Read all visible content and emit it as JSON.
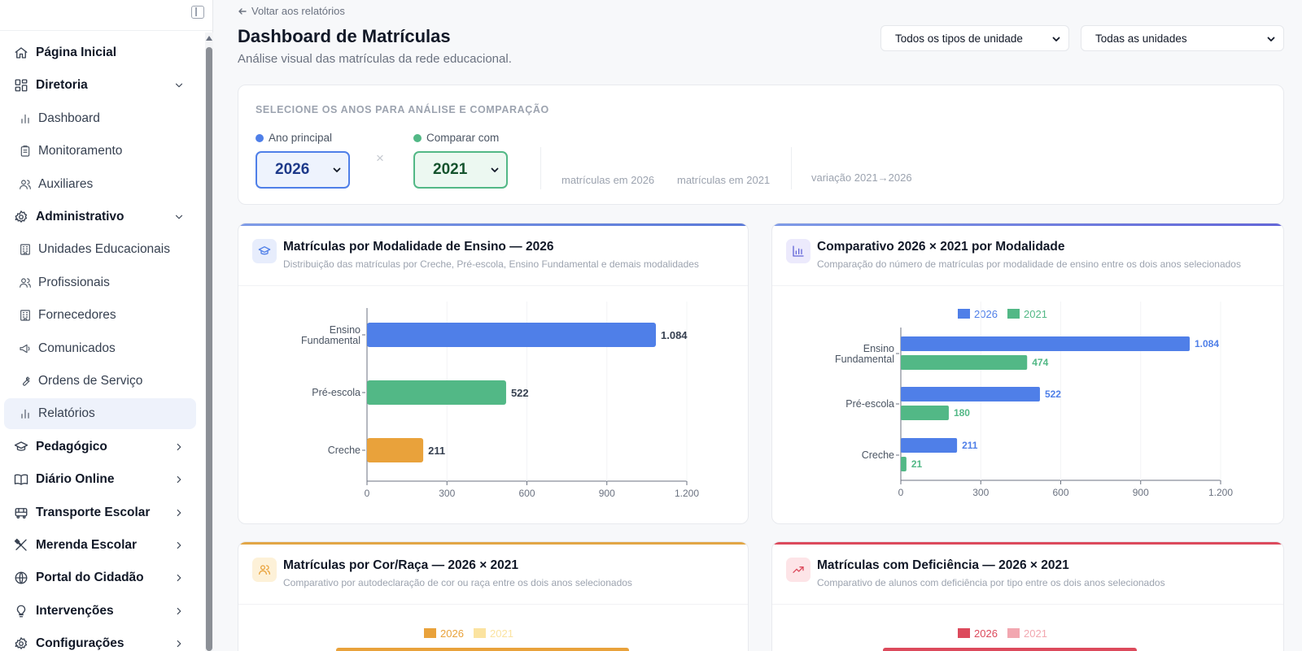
{
  "sidebar": {
    "items": [
      {
        "label": "Página Inicial",
        "icon": "home-icon",
        "level": "top"
      },
      {
        "label": "Diretoria",
        "icon": "grid-icon",
        "level": "top",
        "chevron": "down"
      },
      {
        "label": "Dashboard",
        "icon": "bar-chart-icon",
        "level": "sub"
      },
      {
        "label": "Monitoramento",
        "icon": "clipboard-icon",
        "level": "sub"
      },
      {
        "label": "Auxiliares",
        "icon": "users-icon",
        "level": "sub"
      },
      {
        "label": "Administrativo",
        "icon": "gear-icon",
        "level": "top",
        "chevron": "down"
      },
      {
        "label": "Unidades Educacionais",
        "icon": "building-icon",
        "level": "sub"
      },
      {
        "label": "Profissionais",
        "icon": "users-icon",
        "level": "sub"
      },
      {
        "label": "Fornecedores",
        "icon": "building-icon",
        "level": "sub"
      },
      {
        "label": "Comunicados",
        "icon": "megaphone-icon",
        "level": "sub"
      },
      {
        "label": "Ordens de Serviço",
        "icon": "wrench-icon",
        "level": "sub"
      },
      {
        "label": "Relatórios",
        "icon": "bar-chart-icon",
        "level": "sub",
        "active": true
      },
      {
        "label": "Pedagógico",
        "icon": "graduation-cap-icon",
        "level": "top",
        "chevron": "right"
      },
      {
        "label": "Diário Online",
        "icon": "book-icon",
        "level": "top",
        "chevron": "right"
      },
      {
        "label": "Transporte Escolar",
        "icon": "bus-icon",
        "level": "top",
        "chevron": "right"
      },
      {
        "label": "Merenda Escolar",
        "icon": "utensils-icon",
        "level": "top",
        "chevron": "right"
      },
      {
        "label": "Portal do Cidadão",
        "icon": "globe-icon",
        "level": "top",
        "chevron": "right"
      },
      {
        "label": "Intervenções",
        "icon": "lightbulb-icon",
        "level": "top",
        "chevron": "right"
      },
      {
        "label": "Configurações",
        "icon": "gear-icon",
        "level": "top",
        "chevron": "right"
      }
    ]
  },
  "header": {
    "back_label": "Voltar aos relatórios",
    "title": "Dashboard de Matrículas",
    "subtitle": "Análise visual das matrículas da rede educacional.",
    "filter_type": "Todos os tipos de unidade",
    "filter_unit": "Todas as unidades"
  },
  "year_selector": {
    "title": "SELECIONE OS ANOS PARA ANÁLISE E COMPARAÇÃO",
    "primary_label": "Ano principal",
    "primary_value": "2026",
    "compare_label": "Comparar com",
    "compare_value": "2021",
    "times": "×",
    "stat_primary": "matrículas em 2026",
    "stat_compare": "matrículas em 2021",
    "stat_variation": "variação 2021→2026"
  },
  "cards": {
    "modalidade": {
      "title": "Matrículas por Modalidade de Ensino — 2026",
      "subtitle": "Distribuição das matrículas por Creche, Pré-escola, Ensino Fundamental e demais modalidades"
    },
    "comparativo": {
      "title": "Comparativo 2026 × 2021 por Modalidade",
      "subtitle": "Comparação do número de matrículas por modalidade de ensino entre os dois anos selecionados"
    },
    "cor_raca": {
      "title": "Matrículas por Cor/Raça — 2026 × 2021",
      "subtitle": "Comparativo por autodeclaração de cor ou raça entre os dois anos selecionados"
    },
    "deficiencia": {
      "title": "Matrículas com Deficiência — 2026 × 2021",
      "subtitle": "Comparativo de alunos com deficiência por tipo entre os dois anos selecionados"
    }
  },
  "colors": {
    "blue": "#4f7fe8",
    "green": "#52b886",
    "orange": "#e9a23b",
    "orange_light": "#fbe3a0",
    "red": "#dc4a5c",
    "red_light": "#f2a7b0"
  },
  "chart_data": [
    {
      "type": "bar",
      "orientation": "horizontal",
      "title": "Matrículas por Modalidade de Ensino — 2026",
      "categories": [
        "Ensino Fundamental",
        "Pré-escola",
        "Creche"
      ],
      "values": [
        1084,
        522,
        211
      ],
      "value_labels": [
        "1.084",
        "522",
        "211"
      ],
      "bar_colors": [
        "#4f7fe8",
        "#52b886",
        "#e9a23b"
      ],
      "xlim": [
        0,
        1200
      ],
      "xticks": [
        "0",
        "300",
        "600",
        "900",
        "1.200"
      ],
      "grid": true
    },
    {
      "type": "bar",
      "orientation": "horizontal",
      "title": "Comparativo 2026 × 2021 por Modalidade",
      "categories": [
        "Ensino Fundamental",
        "Pré-escola",
        "Creche"
      ],
      "series": [
        {
          "name": "2026",
          "values": [
            1084,
            522,
            211
          ],
          "labels": [
            "1.084",
            "522",
            "211"
          ],
          "color": "#4f7fe8"
        },
        {
          "name": "2021",
          "values": [
            474,
            180,
            21
          ],
          "labels": [
            "474",
            "180",
            "21"
          ],
          "color": "#52b886"
        }
      ],
      "xlim": [
        0,
        1200
      ],
      "xticks": [
        "0",
        "300",
        "600",
        "900",
        "1.200"
      ],
      "legend": "top",
      "grid": true
    },
    {
      "type": "bar",
      "title": "Matrículas por Cor/Raça — 2026 × 2021",
      "series": [
        {
          "name": "2026",
          "color": "#e9a23b"
        },
        {
          "name": "2021",
          "color": "#fbe3a0"
        }
      ],
      "legend": "top"
    },
    {
      "type": "bar",
      "title": "Matrículas com Deficiência — 2026 × 2021",
      "series": [
        {
          "name": "2026",
          "color": "#dc4a5c"
        },
        {
          "name": "2021",
          "color": "#f2a7b0"
        }
      ],
      "legend": "top"
    }
  ]
}
